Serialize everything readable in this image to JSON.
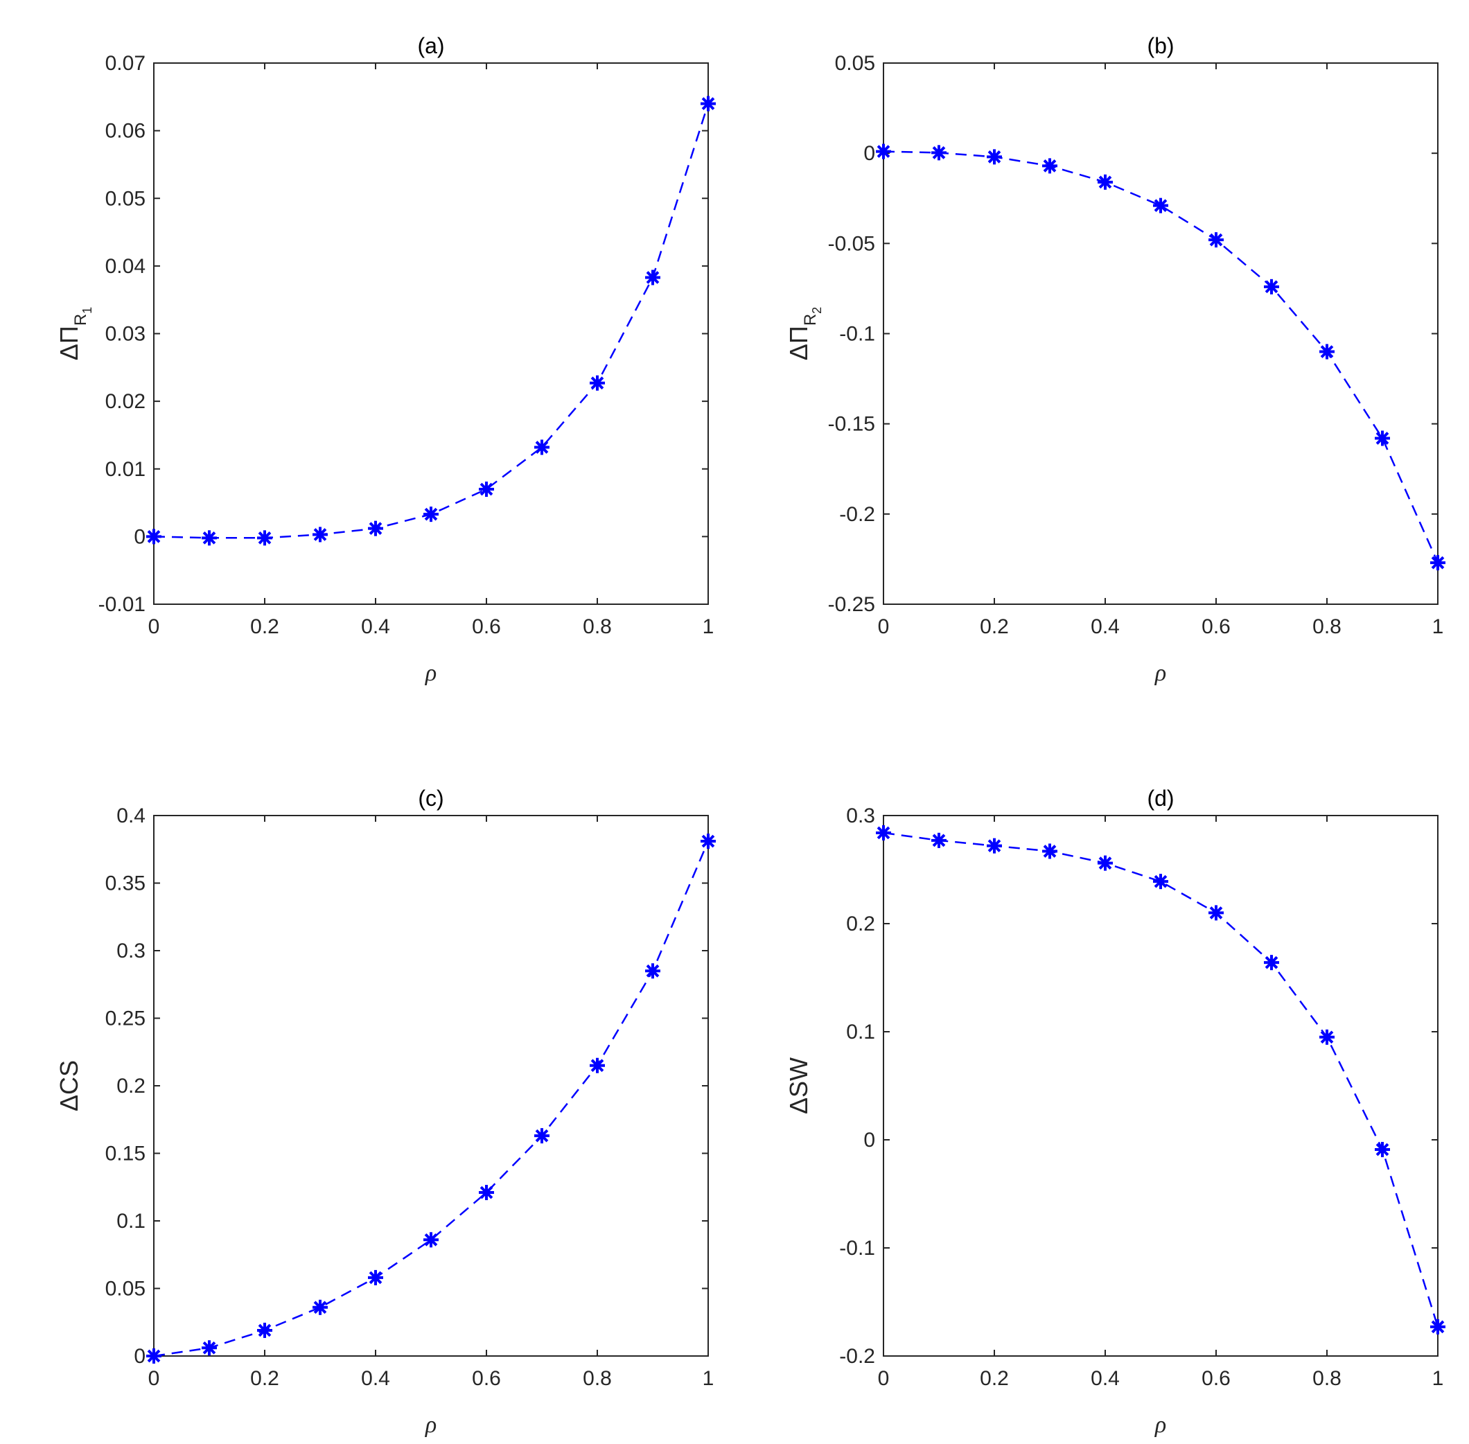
{
  "colors": {
    "series": "#0000ff",
    "axis": "#262626"
  },
  "chart_data": [
    {
      "type": "line",
      "title": "(a)",
      "ylabel": {
        "base": "ΔΠ",
        "sub": "R",
        "subsub": "1"
      },
      "xlabel": "ρ",
      "xlim": [
        0,
        1
      ],
      "ylim": [
        -0.01,
        0.07
      ],
      "xticks": [
        0,
        0.2,
        0.4,
        0.6,
        0.8,
        1
      ],
      "xtick_labels": [
        "0",
        "0.2",
        "0.4",
        "0.6",
        "0.8",
        "1"
      ],
      "yticks": [
        -0.01,
        0,
        0.01,
        0.02,
        0.03,
        0.04,
        0.05,
        0.06,
        0.07
      ],
      "ytick_labels": [
        "-0.01",
        "0",
        "0.01",
        "0.02",
        "0.03",
        "0.04",
        "0.05",
        "0.06",
        "0.07"
      ],
      "marker": "asterisk",
      "line_style": "dashed",
      "x": [
        0,
        0.1,
        0.2,
        0.3,
        0.4,
        0.5,
        0.6,
        0.7,
        0.8,
        0.9,
        1.0
      ],
      "y": [
        0,
        -0.0002,
        -0.0002,
        0.0003,
        0.0012,
        0.0033,
        0.007,
        0.0132,
        0.0227,
        0.0383,
        0.064
      ]
    },
    {
      "type": "line",
      "title": "(b)",
      "ylabel": {
        "base": "ΔΠ",
        "sub": "R",
        "subsub": "2"
      },
      "xlabel": "ρ",
      "xlim": [
        0,
        1
      ],
      "ylim": [
        -0.25,
        0.05
      ],
      "xticks": [
        0,
        0.2,
        0.4,
        0.6,
        0.8,
        1
      ],
      "xtick_labels": [
        "0",
        "0.2",
        "0.4",
        "0.6",
        "0.8",
        "1"
      ],
      "yticks": [
        -0.25,
        -0.2,
        -0.15,
        -0.1,
        -0.05,
        0,
        0.05
      ],
      "ytick_labels": [
        "-0.25",
        "-0.2",
        "-0.15",
        "-0.1",
        "-0.05",
        "0",
        "0.05"
      ],
      "marker": "asterisk",
      "line_style": "dashed",
      "x": [
        0,
        0.1,
        0.2,
        0.3,
        0.4,
        0.5,
        0.6,
        0.7,
        0.8,
        0.9,
        1.0
      ],
      "y": [
        0.001,
        0.0003,
        -0.002,
        -0.007,
        -0.016,
        -0.029,
        -0.048,
        -0.074,
        -0.11,
        -0.158,
        -0.227
      ]
    },
    {
      "type": "line",
      "title": "(c)",
      "ylabel": {
        "base": "ΔCS"
      },
      "xlabel": "ρ",
      "xlim": [
        0,
        1
      ],
      "ylim": [
        0,
        0.4
      ],
      "xticks": [
        0,
        0.2,
        0.4,
        0.6,
        0.8,
        1
      ],
      "xtick_labels": [
        "0",
        "0.2",
        "0.4",
        "0.6",
        "0.8",
        "1"
      ],
      "yticks": [
        0,
        0.05,
        0.1,
        0.15,
        0.2,
        0.25,
        0.3,
        0.35,
        0.4
      ],
      "ytick_labels": [
        "0",
        "0.05",
        "0.1",
        "0.15",
        "0.2",
        "0.25",
        "0.3",
        "0.35",
        "0.4"
      ],
      "marker": "asterisk",
      "line_style": "dashed",
      "x": [
        0,
        0.1,
        0.2,
        0.3,
        0.4,
        0.5,
        0.6,
        0.7,
        0.8,
        0.9,
        1.0
      ],
      "y": [
        0,
        0.006,
        0.019,
        0.036,
        0.058,
        0.086,
        0.121,
        0.163,
        0.215,
        0.285,
        0.381
      ]
    },
    {
      "type": "line",
      "title": "(d)",
      "ylabel": {
        "base": "ΔSW"
      },
      "xlabel": "ρ",
      "xlim": [
        0,
        1
      ],
      "ylim": [
        -0.2,
        0.3
      ],
      "xticks": [
        0,
        0.2,
        0.4,
        0.6,
        0.8,
        1
      ],
      "xtick_labels": [
        "0",
        "0.2",
        "0.4",
        "0.6",
        "0.8",
        "1"
      ],
      "yticks": [
        -0.2,
        -0.1,
        0,
        0.1,
        0.2,
        0.3
      ],
      "ytick_labels": [
        "-0.2",
        "-0.1",
        "0",
        "0.1",
        "0.2",
        "0.3"
      ],
      "marker": "asterisk",
      "line_style": "dashed",
      "x": [
        0,
        0.1,
        0.2,
        0.3,
        0.4,
        0.5,
        0.6,
        0.7,
        0.8,
        0.9,
        1.0
      ],
      "y": [
        0.284,
        0.277,
        0.272,
        0.267,
        0.256,
        0.239,
        0.21,
        0.164,
        0.095,
        -0.009,
        -0.173
      ]
    }
  ]
}
